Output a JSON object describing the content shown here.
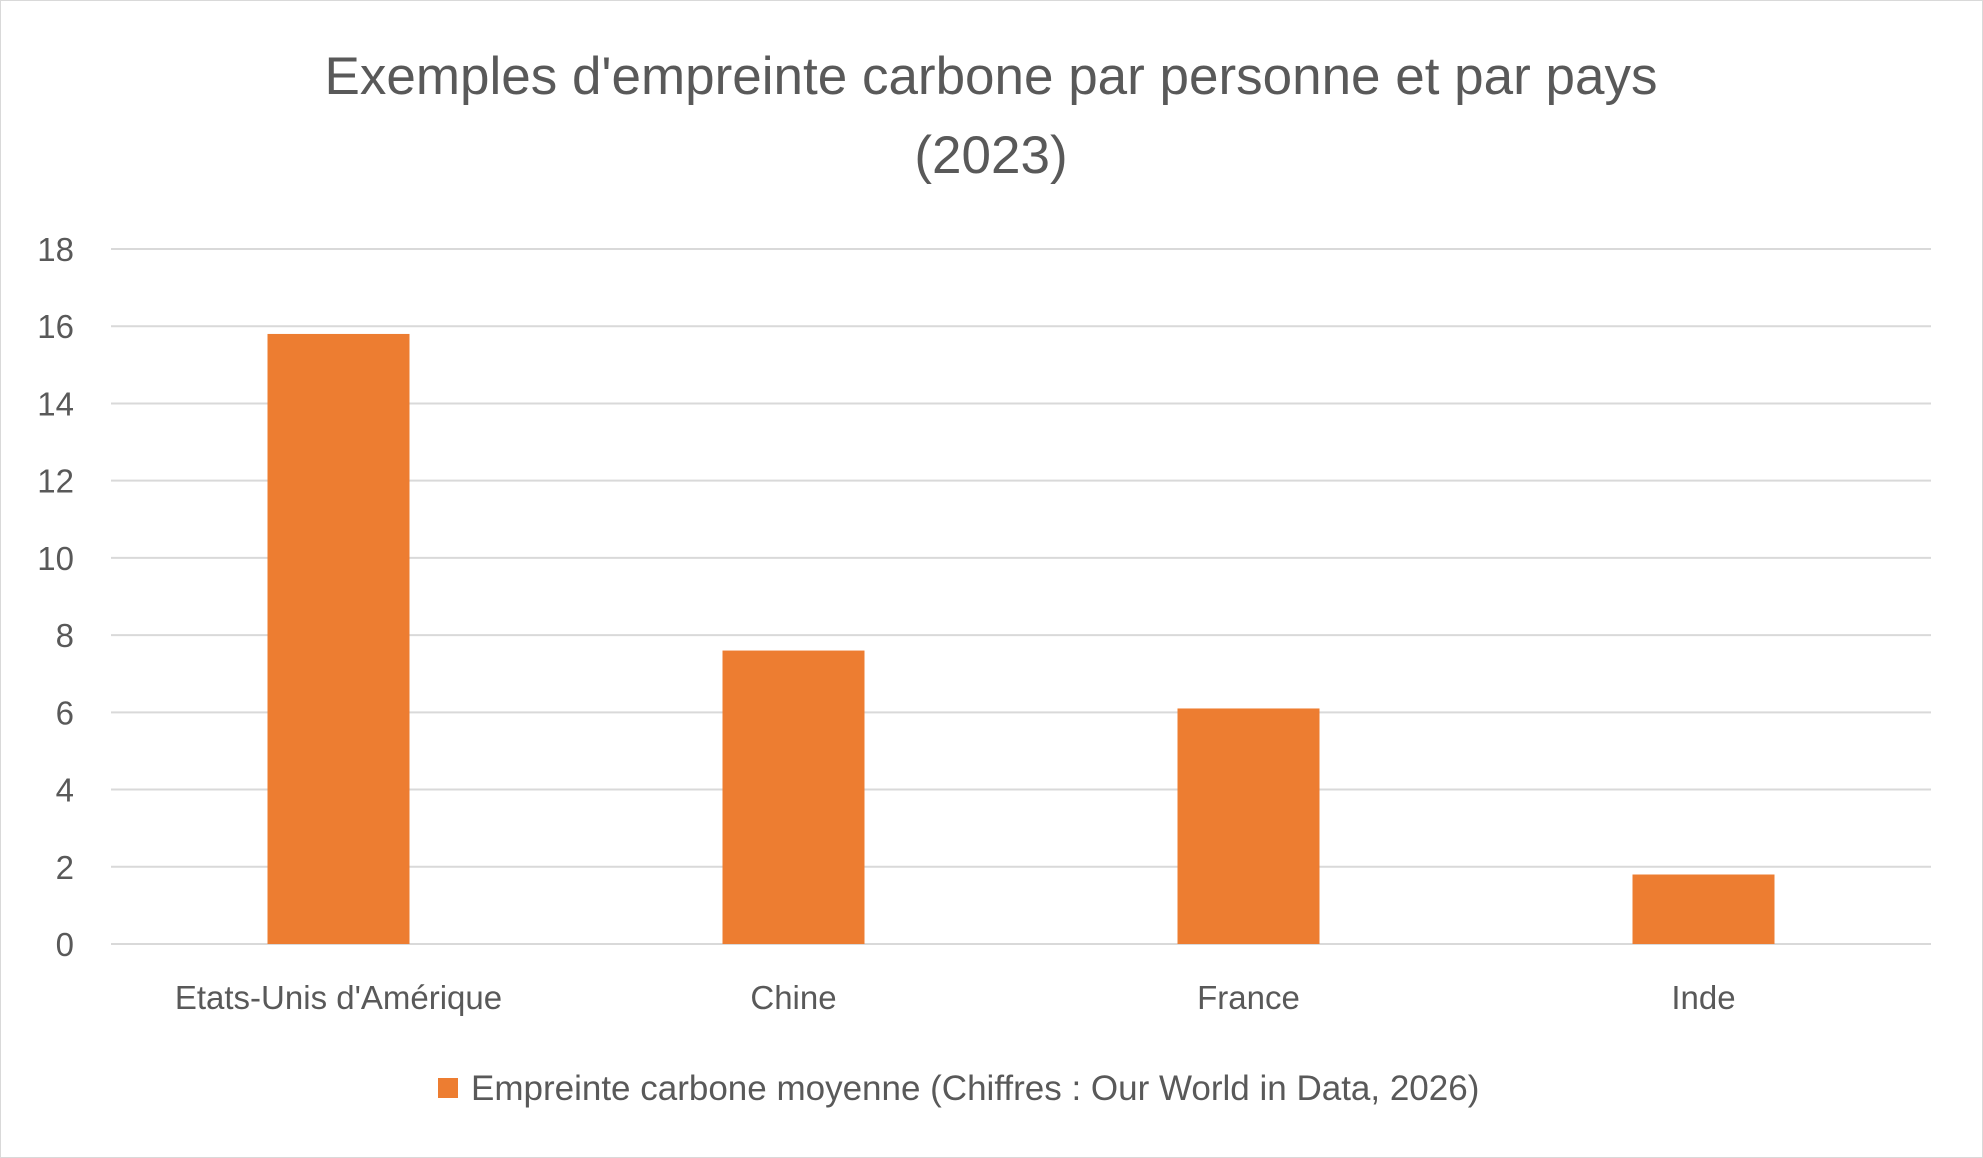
{
  "chart_data": {
    "type": "bar",
    "title_lines": [
      "Exemples d'empreinte carbone par personne et par pays",
      "(2023)"
    ],
    "categories": [
      "Etats-Unis d'Amérique",
      "Chine",
      "France",
      "Inde"
    ],
    "series": [
      {
        "name": "Empreinte carbone moyenne (Chiffres : Our World in Data, 2026)",
        "values": [
          15.8,
          7.6,
          6.1,
          1.8
        ],
        "color": "#ed7d31"
      }
    ],
    "y_ticks": [
      "0",
      "2",
      "4",
      "6",
      "8",
      "10",
      "12",
      "14",
      "16",
      "18"
    ],
    "ylim": [
      0,
      18
    ],
    "grid": true,
    "gridline_color": "#d9d9d9",
    "text_color": "#595959",
    "legend_position": "bottom"
  }
}
